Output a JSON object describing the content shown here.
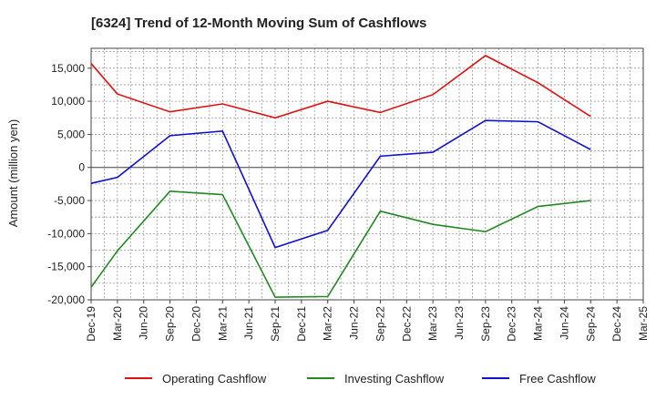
{
  "chart_data": {
    "type": "line",
    "title": "[6324]  Trend of 12-Month Moving Sum of Cashflows",
    "ylabel": "Amount (million yen)",
    "xlabel": "",
    "categories": [
      "Dec-19",
      "Mar-20",
      "Jun-20",
      "Sep-20",
      "Dec-20",
      "Mar-21",
      "Jun-21",
      "Sep-21",
      "Dec-21",
      "Mar-22",
      "Jun-22",
      "Sep-22",
      "Dec-22",
      "Mar-23",
      "Jun-23",
      "Sep-23",
      "Dec-23",
      "Mar-24",
      "Jun-24",
      "Sep-24",
      "Dec-24",
      "Mar-25"
    ],
    "ylim": [
      -20000,
      18000
    ],
    "yticks": [
      -20000,
      -15000,
      -10000,
      -5000,
      0,
      5000,
      10000,
      15000
    ],
    "ytick_labels": [
      "-20,000",
      "-15,000",
      "-10,000",
      "-5,000",
      "0",
      "5,000",
      "10,000",
      "15,000"
    ],
    "grid": true,
    "legend_position": "bottom",
    "series": [
      {
        "name": "Operating Cashflow",
        "color": "#dd1111",
        "points": [
          {
            "x": "Dec-19",
            "y": 15700
          },
          {
            "x": "Mar-20",
            "y": 11100
          },
          {
            "x": "Sep-20",
            "y": 8400
          },
          {
            "x": "Mar-21",
            "y": 9600
          },
          {
            "x": "Sep-21",
            "y": 7500
          },
          {
            "x": "Mar-22",
            "y": 10000
          },
          {
            "x": "Sep-22",
            "y": 8300
          },
          {
            "x": "Mar-23",
            "y": 11000
          },
          {
            "x": "Sep-23",
            "y": 16900
          },
          {
            "x": "Mar-24",
            "y": 12800
          },
          {
            "x": "Sep-24",
            "y": 7700
          }
        ]
      },
      {
        "name": "Investing Cashflow",
        "color": "#228822",
        "points": [
          {
            "x": "Dec-19",
            "y": -18100
          },
          {
            "x": "Mar-20",
            "y": -12600
          },
          {
            "x": "Sep-20",
            "y": -3600
          },
          {
            "x": "Mar-21",
            "y": -4100
          },
          {
            "x": "Sep-21",
            "y": -19600
          },
          {
            "x": "Mar-22",
            "y": -19500
          },
          {
            "x": "Sep-22",
            "y": -6600
          },
          {
            "x": "Mar-23",
            "y": -8600
          },
          {
            "x": "Sep-23",
            "y": -9700
          },
          {
            "x": "Mar-24",
            "y": -5900
          },
          {
            "x": "Sep-24",
            "y": -5000
          }
        ]
      },
      {
        "name": "Free Cashflow",
        "color": "#1111cc",
        "points": [
          {
            "x": "Dec-19",
            "y": -2400
          },
          {
            "x": "Mar-20",
            "y": -1500
          },
          {
            "x": "Sep-20",
            "y": 4800
          },
          {
            "x": "Mar-21",
            "y": 5500
          },
          {
            "x": "Sep-21",
            "y": -12100
          },
          {
            "x": "Mar-22",
            "y": -9500
          },
          {
            "x": "Sep-22",
            "y": 1700
          },
          {
            "x": "Mar-23",
            "y": 2300
          },
          {
            "x": "Sep-23",
            "y": 7100
          },
          {
            "x": "Mar-24",
            "y": 6900
          },
          {
            "x": "Sep-24",
            "y": 2700
          }
        ]
      }
    ]
  }
}
